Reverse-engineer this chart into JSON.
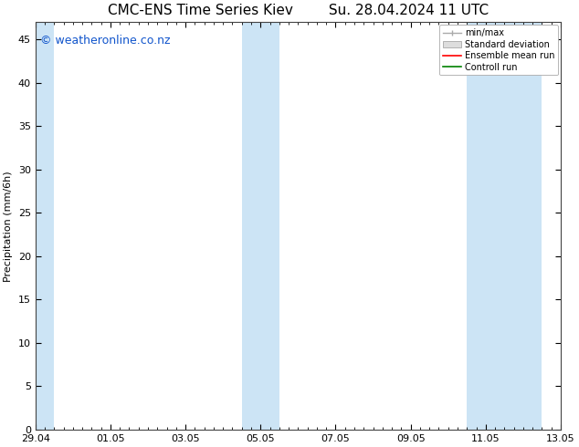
{
  "title_left": "CMC-ENS Time Series Kiev",
  "title_right": "Su. 28.04.2024 11 UTC",
  "ylabel": "Precipitation (mm/6h)",
  "ylim": [
    0,
    47
  ],
  "yticks": [
    0,
    5,
    10,
    15,
    20,
    25,
    30,
    35,
    40,
    45
  ],
  "xlim": [
    0,
    336
  ],
  "xtick_labels": [
    "29.04",
    "01.05",
    "03.05",
    "05.05",
    "07.05",
    "09.05",
    "11.05",
    "13.05"
  ],
  "xtick_positions": [
    0,
    48,
    96,
    144,
    192,
    240,
    288,
    336
  ],
  "shaded_bands": [
    {
      "x_start": 0,
      "x_end": 12
    },
    {
      "x_start": 132,
      "x_end": 156
    },
    {
      "x_start": 276,
      "x_end": 300
    },
    {
      "x_start": 300,
      "x_end": 324
    }
  ],
  "band_color": "#cce4f5",
  "background_color": "#ffffff",
  "watermark_text": "© weatheronline.co.nz",
  "watermark_color": "#1155cc",
  "watermark_fontsize": 9,
  "legend_entries": [
    "min/max",
    "Standard deviation",
    "Ensemble mean run",
    "Controll run"
  ],
  "legend_line_colors": [
    "#aaaaaa",
    "#cccccc",
    "#ff0000",
    "#008000"
  ],
  "title_fontsize": 11,
  "axis_label_fontsize": 8,
  "tick_fontsize": 8,
  "spine_color": "#444444"
}
